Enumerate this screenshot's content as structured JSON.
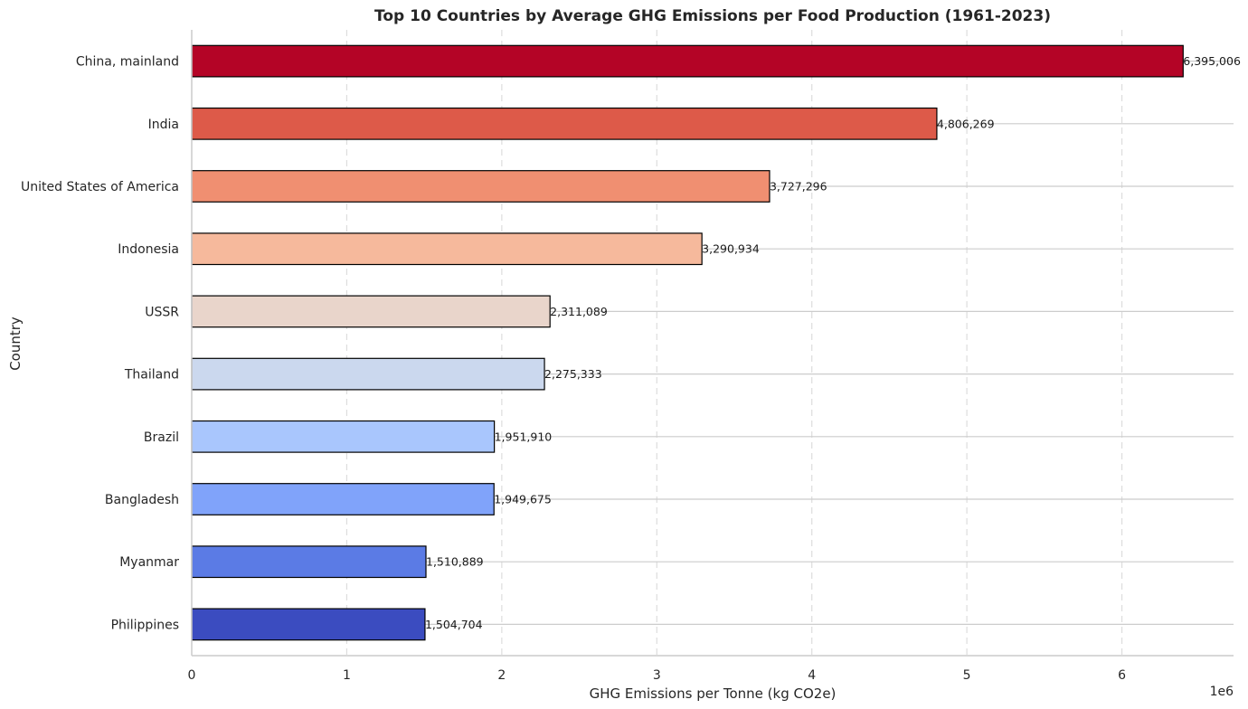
{
  "chart_data": {
    "type": "bar",
    "orientation": "horizontal",
    "title": "Top 10 Countries by Average GHG Emissions per Food Production (1961-2023)",
    "xlabel": "GHG Emissions per Tonne (kg CO2e)",
    "ylabel": "Country",
    "x_offset_label": "1e6",
    "xlim": [
      0,
      6.72
    ],
    "xticks": [
      0,
      1,
      2,
      3,
      4,
      5,
      6
    ],
    "grid": "x dashed, y solid",
    "categories": [
      "China, mainland",
      "India",
      "United States of America",
      "Indonesia",
      "USSR",
      "Thailand",
      "Brazil",
      "Bangladesh",
      "Myanmar",
      "Philippines"
    ],
    "values": [
      6395006,
      4806269,
      3727296,
      3290934,
      2311089,
      2275333,
      1951910,
      1949675,
      1510889,
      1504704
    ],
    "value_labels": [
      "6,395,006",
      "4,806,269",
      "3,727,296",
      "3,290,934",
      "2,311,089",
      "2,275,333",
      "1,951,910",
      "1,949,675",
      "1,510,889",
      "1,504,704"
    ],
    "colors": [
      "#b40426",
      "#dd5a49",
      "#f08f71",
      "#f6b99c",
      "#e9d5cb",
      "#cbd8ee",
      "#a9c6fd",
      "#80a3fa",
      "#5b7be5",
      "#3b4cc0"
    ],
    "bar_edge_color": "#000000"
  }
}
